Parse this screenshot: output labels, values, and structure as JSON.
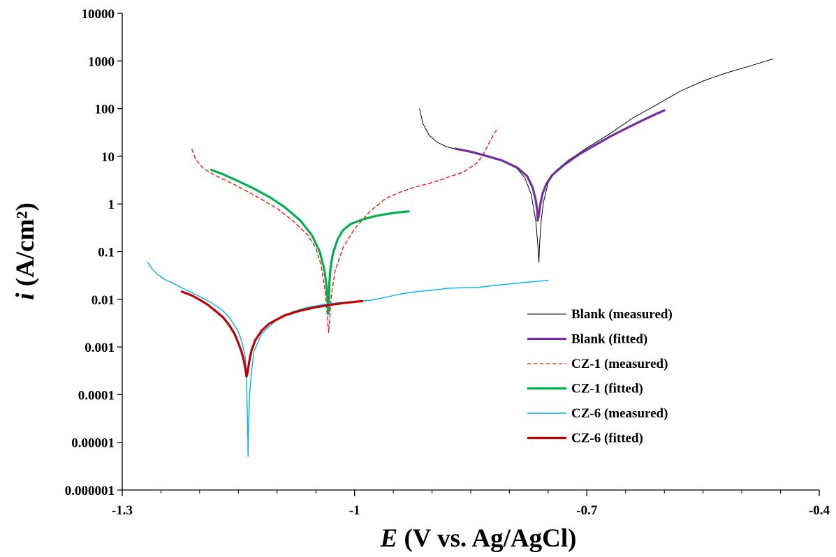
{
  "chart_data": {
    "type": "line",
    "xlabel": {
      "italic": "E",
      "rest": " (V vs. Ag/AgCl)"
    },
    "ylabel": {
      "italic": "i",
      "rest": " (A/cm²)"
    },
    "xlim": [
      -1.3,
      -0.4
    ],
    "ylim": [
      1e-06,
      10000
    ],
    "yscale": "log",
    "xticks": [
      {
        "value": -1.3,
        "label": "-1.3"
      },
      {
        "value": -1.0,
        "label": "-1"
      },
      {
        "value": -0.7,
        "label": "-0.7"
      },
      {
        "value": -0.4,
        "label": "-0.4"
      }
    ],
    "yticks": [
      {
        "value": 10000,
        "label": "10000"
      },
      {
        "value": 1000,
        "label": "1000"
      },
      {
        "value": 100,
        "label": "100"
      },
      {
        "value": 10,
        "label": "10"
      },
      {
        "value": 1,
        "label": "1"
      },
      {
        "value": 0.1,
        "label": "0.1"
      },
      {
        "value": 0.01,
        "label": "0.01"
      },
      {
        "value": 0.001,
        "label": "0.001"
      },
      {
        "value": 0.0001,
        "label": "0.0001"
      },
      {
        "value": 1e-05,
        "label": "0.00001"
      },
      {
        "value": 1e-06,
        "label": "0.000001"
      }
    ],
    "grid": false,
    "legend_position": "bottom-right",
    "series": [
      {
        "name": "Blank (measured)",
        "color": "#000000",
        "width": 1,
        "dash": "",
        "x": [
          -0.916,
          -0.912,
          -0.904,
          -0.894,
          -0.882,
          -0.868,
          -0.85,
          -0.83,
          -0.81,
          -0.79,
          -0.78,
          -0.772,
          -0.766,
          -0.7635,
          -0.762,
          -0.761,
          -0.759,
          -0.756,
          -0.75,
          -0.74,
          -0.725,
          -0.7,
          -0.67,
          -0.64,
          -0.61,
          -0.58,
          -0.55,
          -0.52,
          -0.49,
          -0.46
        ],
        "y": [
          100,
          50,
          28,
          20,
          16,
          14,
          12,
          10,
          8,
          5.5,
          3.5,
          1.6,
          0.45,
          0.15,
          0.06,
          0.15,
          0.45,
          1.1,
          2.8,
          5,
          8,
          15,
          30,
          65,
          120,
          230,
          380,
          560,
          780,
          1100
        ]
      },
      {
        "name": "Blank (fitted)",
        "color": "#7030A0",
        "width": 3.2,
        "dash": "",
        "x": [
          -0.87,
          -0.85,
          -0.83,
          -0.81,
          -0.79,
          -0.777,
          -0.77,
          -0.766,
          -0.764,
          -0.7635,
          -0.762,
          -0.76,
          -0.757,
          -0.752,
          -0.745,
          -0.73,
          -0.71,
          -0.69,
          -0.67,
          -0.65,
          -0.63,
          -0.61,
          -0.6
        ],
        "y": [
          14.5,
          12.5,
          10.2,
          8.2,
          5.8,
          3.8,
          2.2,
          1.2,
          0.7,
          0.45,
          0.6,
          1.0,
          1.7,
          2.7,
          4.0,
          6.5,
          11,
          17,
          26,
          38,
          55,
          78,
          92
        ]
      },
      {
        "name": "CZ-1 (measured)",
        "color": "#FF0000",
        "width": 1.3,
        "dash": "5,4",
        "x": [
          -1.21,
          -1.205,
          -1.195,
          -1.18,
          -1.16,
          -1.14,
          -1.12,
          -1.1,
          -1.08,
          -1.06,
          -1.05,
          -1.043,
          -1.038,
          -1.035,
          -1.0335,
          -1.032,
          -1.03,
          -1.025,
          -1.015,
          -1.0,
          -0.98,
          -0.96,
          -0.94,
          -0.92,
          -0.9,
          -0.88,
          -0.86,
          -0.843,
          -0.835,
          -0.827,
          -0.82,
          -0.815
        ],
        "y": [
          14,
          8.5,
          5.5,
          4.0,
          2.8,
          1.9,
          1.25,
          0.8,
          0.45,
          0.22,
          0.12,
          0.05,
          0.015,
          0.004,
          0.002,
          0.004,
          0.012,
          0.04,
          0.12,
          0.3,
          0.7,
          1.3,
          1.8,
          2.3,
          2.8,
          3.6,
          4.6,
          7,
          10,
          18,
          30,
          38
        ]
      },
      {
        "name": "CZ-1 (fitted)",
        "color": "#00B050",
        "width": 3.2,
        "dash": "",
        "x": [
          -1.185,
          -1.17,
          -1.15,
          -1.13,
          -1.11,
          -1.09,
          -1.07,
          -1.055,
          -1.045,
          -1.039,
          -1.036,
          -1.0345,
          -1.034,
          -1.0335,
          -1.033,
          -1.0325,
          -1.031,
          -1.028,
          -1.022,
          -1.015,
          -1.005,
          -0.99,
          -0.975,
          -0.96,
          -0.945,
          -0.93
        ],
        "y": [
          5.2,
          4.2,
          3.0,
          2.1,
          1.4,
          0.85,
          0.45,
          0.22,
          0.1,
          0.042,
          0.018,
          0.008,
          0.005,
          0.006,
          0.012,
          0.022,
          0.045,
          0.09,
          0.18,
          0.28,
          0.38,
          0.47,
          0.55,
          0.61,
          0.66,
          0.7
        ]
      },
      {
        "name": "CZ-6 (measured)",
        "color": "#00B0F0",
        "width": 1.4,
        "dash": "",
        "x": [
          -1.267,
          -1.262,
          -1.255,
          -1.245,
          -1.235,
          -1.225,
          -1.215,
          -1.2,
          -1.185,
          -1.17,
          -1.16,
          -1.15,
          -1.145,
          -1.141,
          -1.1395,
          -1.139,
          -1.138,
          -1.1375,
          -1.137,
          -1.1355,
          -1.133,
          -1.13,
          -1.12,
          -1.1,
          -1.08,
          -1.06,
          -1.04,
          -1.02,
          -1.0,
          -0.98,
          -0.96,
          -0.94,
          -0.92,
          -0.9,
          -0.88,
          -0.86,
          -0.84,
          -0.82,
          -0.8,
          -0.775,
          -0.75
        ],
        "y": [
          0.06,
          0.045,
          0.034,
          0.026,
          0.022,
          0.018,
          0.015,
          0.0115,
          0.0085,
          0.0058,
          0.0038,
          0.0021,
          0.0012,
          0.0006,
          0.0003,
          0.0001,
          2e-05,
          5e-06,
          2e-05,
          0.0001,
          0.0003,
          0.0008,
          0.0019,
          0.0038,
          0.0055,
          0.0068,
          0.0078,
          0.0085,
          0.009,
          0.0095,
          0.011,
          0.013,
          0.0145,
          0.0155,
          0.017,
          0.0175,
          0.0178,
          0.0195,
          0.021,
          0.023,
          0.025
        ]
      },
      {
        "name": "CZ-6 (fitted)",
        "color": "#C00000",
        "width": 3.2,
        "dash": "",
        "x": [
          -1.223,
          -1.21,
          -1.2,
          -1.19,
          -1.18,
          -1.17,
          -1.162,
          -1.155,
          -1.15,
          -1.146,
          -1.143,
          -1.141,
          -1.1395,
          -1.138,
          -1.136,
          -1.133,
          -1.128,
          -1.12,
          -1.11,
          -1.09,
          -1.07,
          -1.05,
          -1.03,
          -1.01,
          -0.99
        ],
        "y": [
          0.0145,
          0.012,
          0.0098,
          0.0078,
          0.0058,
          0.0042,
          0.0029,
          0.0019,
          0.0012,
          0.0008,
          0.00052,
          0.00035,
          0.00024,
          0.0003,
          0.0005,
          0.00085,
          0.0014,
          0.0022,
          0.0031,
          0.0046,
          0.0058,
          0.0068,
          0.0077,
          0.0085,
          0.0092
        ]
      }
    ]
  }
}
